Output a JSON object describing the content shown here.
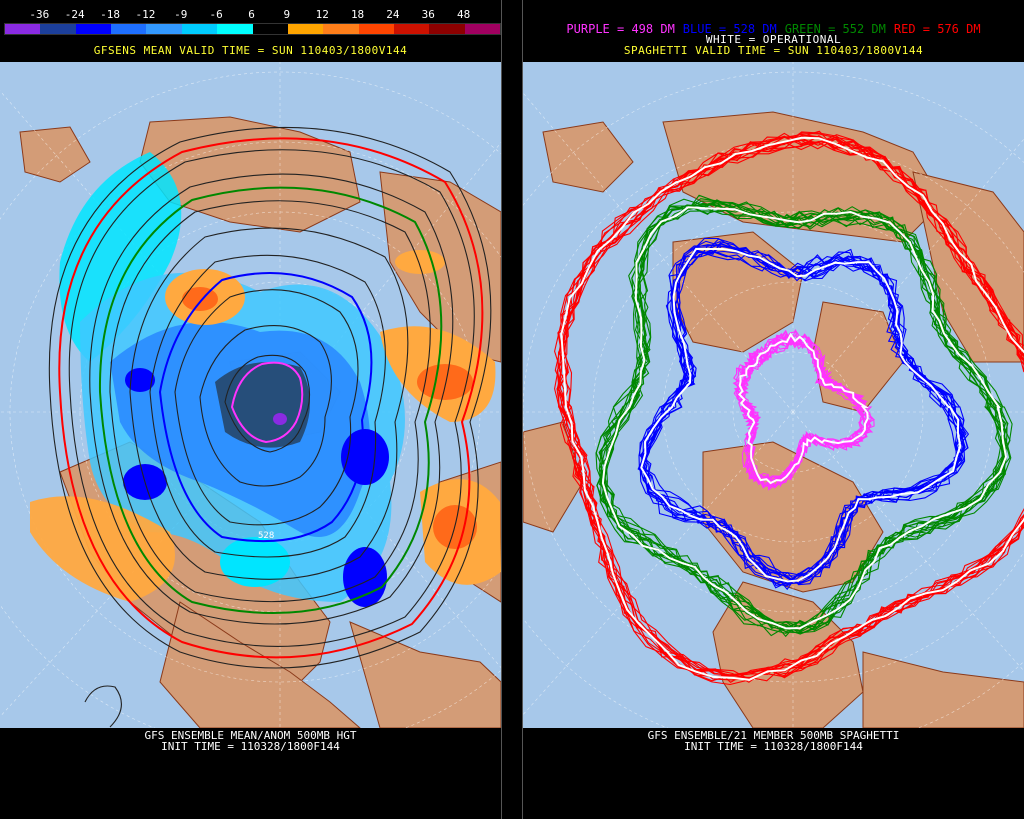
{
  "left": {
    "scale_labels": [
      "-36",
      "-24",
      "-18",
      "-12",
      "-9",
      "-6",
      "6",
      "9",
      "12",
      "18",
      "24",
      "36",
      "48"
    ],
    "scale_colors": [
      "#8a2be2",
      "#1c3f9b",
      "#0000ff",
      "#1e6fff",
      "#3399ff",
      "#00ccff",
      "#00ffff",
      "#000000",
      "#ffa500",
      "#ff7f1a",
      "#ff4500",
      "#cc1100",
      "#8b0000",
      "#a00060"
    ],
    "title": "GFSENS MEAN VALID TIME = SUN 110403/1800V144",
    "contour_label": "528",
    "footer_line1": "GFS ENSEMBLE MEAN/ANOM 500MB HGT",
    "footer_line2": "INIT TIME = 110328/1800F144"
  },
  "right": {
    "legend": [
      {
        "text": "PURPLE = 498 DM",
        "color": "#ff33ff"
      },
      {
        "text": "BLUE = 528 DM",
        "color": "#0000ff"
      },
      {
        "text": "GREEN = 552 DM",
        "color": "#008800"
      },
      {
        "text": "RED = 576 DM",
        "color": "#ff0000"
      }
    ],
    "operational": "WHITE = OPERATIONAL",
    "title": "SPAGHETTI VALID TIME = SUN 110403/1800V144",
    "footer_line1": "GFS ENSEMBLE/21 MEMBER 500MB SPAGHETTI",
    "footer_line2": "INIT TIME = 110328/1800F144"
  },
  "colors": {
    "ocean": "#a7c8ea",
    "land": "#d39c77",
    "coast": "#8b3a1a"
  }
}
